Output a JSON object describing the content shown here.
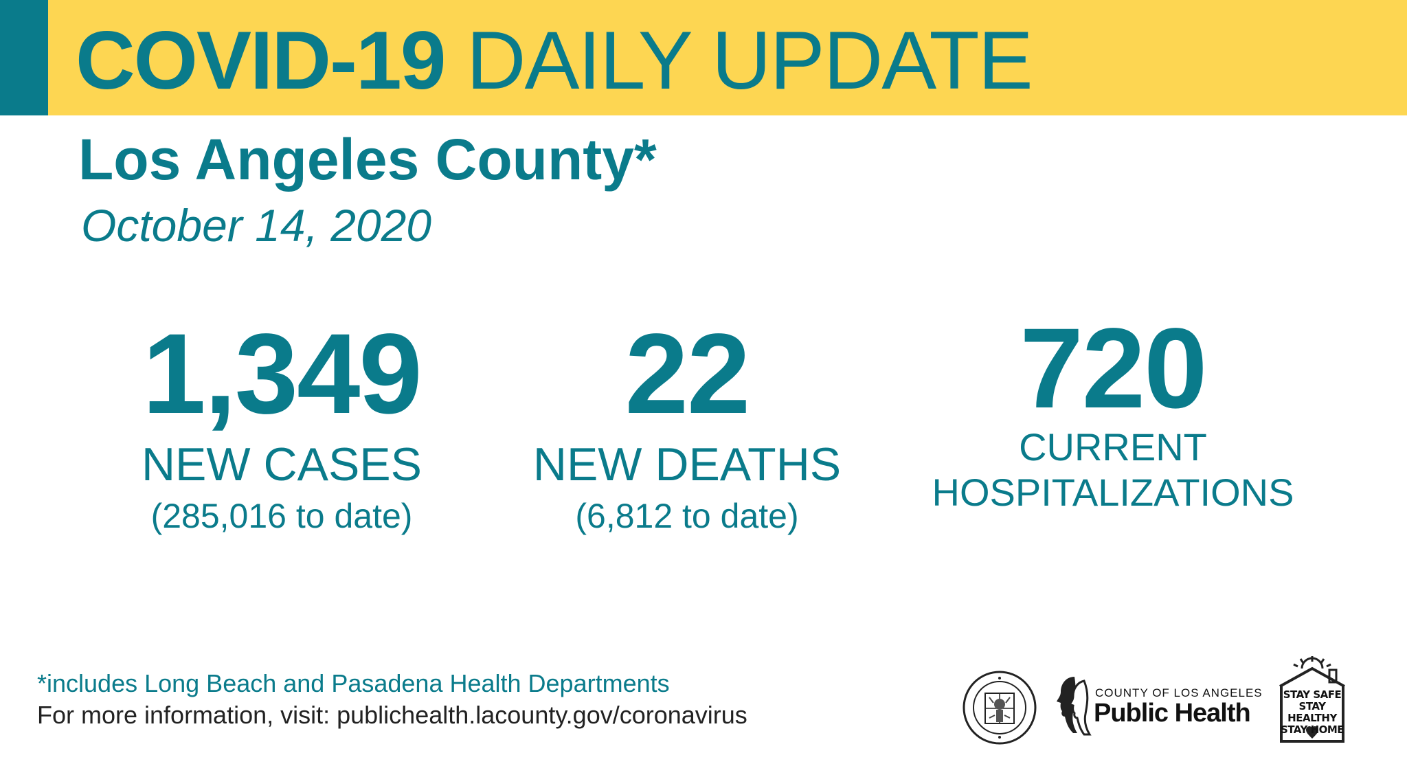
{
  "banner": {
    "title_bold": "COVID-19",
    "title_regular": "DAILY UPDATE"
  },
  "header": {
    "county": "Los Angeles County*",
    "date": "October 14, 2020"
  },
  "stats": {
    "cases": {
      "number": "1,349",
      "label": "NEW CASES",
      "sub": "(285,016 to date)"
    },
    "deaths": {
      "number": "22",
      "label": "NEW DEATHS",
      "sub": "(6,812 to date)"
    },
    "hospitalizations": {
      "number": "720",
      "label_line1": "CURRENT",
      "label_line2": "HOSPITALIZATIONS"
    }
  },
  "footer": {
    "footnote": "*includes Long Beach and Pasadena Health Departments",
    "info": "For more information, visit: publichealth.lacounty.gov/coronavirus"
  },
  "logos": {
    "seal_icon": "county-seal-icon",
    "ph_small": "COUNTY OF LOS ANGELES",
    "ph_big": "Public Health",
    "stay_line1": "STAY SAFE",
    "stay_line2": "STAY HEALTHY",
    "stay_line3": "STAY HOME"
  },
  "colors": {
    "teal": "#0a7b8b",
    "yellow": "#fdd652"
  }
}
